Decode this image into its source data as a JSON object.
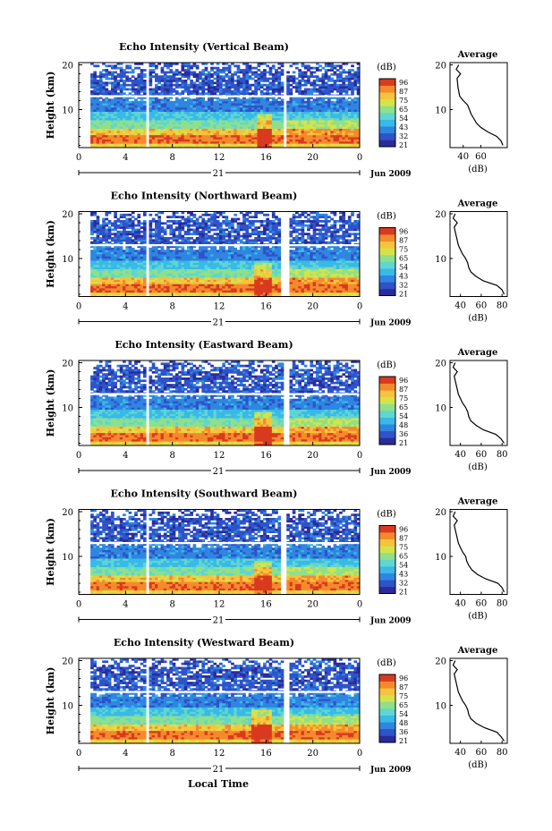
{
  "chart_data": {
    "type": "heatmap",
    "xlabel": "Local Time",
    "x_ticks": [
      "0",
      "4",
      "8",
      "12",
      "16",
      "20",
      "0"
    ],
    "date_label": "21",
    "month_label": "Jun 2009",
    "ylabel": "Height (km)",
    "y_ticks": [
      "20",
      "10"
    ],
    "ylim": [
      1.5,
      20.5
    ],
    "colorbar_unit": "(dB)",
    "avg_title": "Average",
    "avg_xlabel": "(dB)",
    "colors": [
      "#2b2b9a",
      "#2f53c9",
      "#2f86e0",
      "#39b9e8",
      "#5fd6d0",
      "#8fe08a",
      "#d5e34a",
      "#f7c33c",
      "#f58a2c",
      "#d93a1f"
    ],
    "panels": [
      {
        "title": "Echo Intensity (Vertical Beam)",
        "colorbar_ticks": [
          "96",
          "87",
          "75",
          "65",
          "54",
          "43",
          "32",
          "21"
        ],
        "avg_x_ticks": [
          "40",
          "60"
        ],
        "avg_xlim": [
          25,
          90
        ],
        "gaps": [
          [
            0,
            1.0
          ],
          [
            5.8,
            6.0
          ],
          [
            17.6,
            17.85
          ]
        ],
        "burst": [
          15.3,
          16.6
        ],
        "avg_profile": [
          [
            85,
            2
          ],
          [
            83,
            3
          ],
          [
            78,
            4
          ],
          [
            68,
            5
          ],
          [
            60,
            6
          ],
          [
            55,
            7
          ],
          [
            52,
            8
          ],
          [
            49,
            9
          ],
          [
            47,
            10
          ],
          [
            45,
            11
          ],
          [
            40,
            12
          ],
          [
            36,
            13
          ],
          [
            34,
            15
          ],
          [
            33,
            17
          ],
          [
            37,
            18
          ],
          [
            32,
            19
          ],
          [
            35,
            20
          ]
        ]
      },
      {
        "title": "Echo Intensity (Northward Beam)",
        "colorbar_ticks": [
          "96",
          "87",
          "75",
          "65",
          "54",
          "43",
          "32",
          "21"
        ],
        "avg_x_ticks": [
          "40",
          "60",
          "80"
        ],
        "avg_xlim": [
          30,
          85
        ],
        "gaps": [
          [
            0,
            1.0
          ],
          [
            5.8,
            6.0
          ],
          [
            17.3,
            17.9
          ]
        ],
        "burst": [
          15.0,
          16.4
        ],
        "avg_profile": [
          [
            82,
            2
          ],
          [
            80,
            3
          ],
          [
            75,
            4
          ],
          [
            62,
            5
          ],
          [
            55,
            6
          ],
          [
            50,
            7
          ],
          [
            48,
            8
          ],
          [
            47,
            9
          ],
          [
            45,
            10
          ],
          [
            42,
            11
          ],
          [
            40,
            12
          ],
          [
            38,
            13
          ],
          [
            36,
            15
          ],
          [
            34,
            17
          ],
          [
            37,
            18
          ],
          [
            33,
            19
          ],
          [
            35,
            20
          ]
        ]
      },
      {
        "title": "Echo Intensity (Eastward Beam)",
        "colorbar_ticks": [
          "96",
          "87",
          "75",
          "65",
          "54",
          "48",
          "36",
          "21"
        ],
        "avg_x_ticks": [
          "40",
          "60",
          "80"
        ],
        "avg_xlim": [
          30,
          85
        ],
        "gaps": [
          [
            0,
            1.0
          ],
          [
            5.8,
            6.0
          ],
          [
            17.4,
            17.9
          ]
        ],
        "burst": [
          15.0,
          16.4
        ],
        "avg_profile": [
          [
            82,
            2
          ],
          [
            79,
            3
          ],
          [
            74,
            4
          ],
          [
            62,
            5
          ],
          [
            55,
            6
          ],
          [
            50,
            7
          ],
          [
            48,
            8
          ],
          [
            47,
            9
          ],
          [
            45,
            10
          ],
          [
            42,
            11
          ],
          [
            40,
            12
          ],
          [
            38,
            13
          ],
          [
            36,
            15
          ],
          [
            34,
            17
          ],
          [
            37,
            18
          ],
          [
            33,
            19
          ],
          [
            35,
            20
          ]
        ]
      },
      {
        "title": "Echo Intensity (Southward Beam)",
        "colorbar_ticks": [
          "96",
          "87",
          "75",
          "65",
          "54",
          "43",
          "32",
          "21"
        ],
        "avg_x_ticks": [
          "40",
          "60",
          "80"
        ],
        "avg_xlim": [
          30,
          85
        ],
        "gaps": [
          [
            0,
            1.0
          ],
          [
            5.8,
            6.0
          ],
          [
            17.3,
            17.8
          ]
        ],
        "burst": [
          15.0,
          16.6
        ],
        "avg_profile": [
          [
            82,
            2
          ],
          [
            80,
            3
          ],
          [
            76,
            4
          ],
          [
            64,
            5
          ],
          [
            56,
            6
          ],
          [
            51,
            7
          ],
          [
            48,
            8
          ],
          [
            46,
            9
          ],
          [
            45,
            10
          ],
          [
            42,
            11
          ],
          [
            40,
            12
          ],
          [
            38,
            13
          ],
          [
            36,
            15
          ],
          [
            34,
            17
          ],
          [
            37,
            18
          ],
          [
            33,
            19
          ],
          [
            35,
            20
          ]
        ]
      },
      {
        "title": "Echo Intensity (Westward Beam)",
        "colorbar_ticks": [
          "96",
          "87",
          "75",
          "65",
          "54",
          "48",
          "36",
          "21"
        ],
        "avg_x_ticks": [
          "40",
          "60",
          "80"
        ],
        "avg_xlim": [
          30,
          85
        ],
        "gaps": [
          [
            0,
            1.0
          ],
          [
            5.8,
            6.0
          ],
          [
            17.5,
            17.9
          ]
        ],
        "burst": [
          14.8,
          16.6
        ],
        "avg_profile": [
          [
            82,
            2
          ],
          [
            79,
            3
          ],
          [
            75,
            4
          ],
          [
            63,
            5
          ],
          [
            55,
            6
          ],
          [
            50,
            7
          ],
          [
            48,
            8
          ],
          [
            47,
            9
          ],
          [
            45,
            10
          ],
          [
            42,
            11
          ],
          [
            40,
            12
          ],
          [
            38,
            13
          ],
          [
            36,
            15
          ],
          [
            34,
            17
          ],
          [
            37,
            18
          ],
          [
            33,
            19
          ],
          [
            35,
            20
          ]
        ]
      }
    ]
  }
}
